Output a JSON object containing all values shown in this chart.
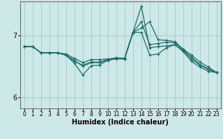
{
  "xlabel": "Humidex (Indice chaleur)",
  "bg_color": "#cce8e8",
  "grid_color": "#aacccc",
  "line_color": "#1a6e6a",
  "xlim": [
    -0.5,
    23.5
  ],
  "ylim": [
    5.82,
    7.55
  ],
  "yticks": [
    6,
    7
  ],
  "xticks": [
    0,
    1,
    2,
    3,
    4,
    5,
    6,
    7,
    8,
    9,
    10,
    11,
    12,
    13,
    14,
    15,
    16,
    17,
    18,
    19,
    20,
    21,
    22,
    23
  ],
  "series": [
    {
      "x": [
        0,
        1,
        2,
        3,
        4,
        5,
        6,
        7,
        8,
        9,
        10,
        11,
        12,
        13,
        14,
        15,
        16,
        17,
        18,
        19,
        20,
        21,
        22,
        23
      ],
      "y": [
        6.82,
        6.82,
        6.72,
        6.72,
        6.72,
        6.7,
        6.63,
        6.56,
        6.61,
        6.61,
        6.62,
        6.63,
        6.62,
        7.05,
        7.05,
        6.68,
        6.7,
        6.8,
        6.85,
        6.75,
        6.62,
        6.52,
        6.45,
        6.4
      ]
    },
    {
      "x": [
        0,
        1,
        2,
        3,
        4,
        5,
        6,
        7,
        8,
        9,
        10,
        11,
        12,
        13,
        14,
        15,
        16,
        17,
        18,
        19,
        20,
        21,
        22,
        23
      ],
      "y": [
        6.82,
        6.82,
        6.72,
        6.72,
        6.72,
        6.68,
        6.6,
        6.5,
        6.56,
        6.56,
        6.6,
        6.62,
        6.62,
        7.05,
        7.22,
        6.85,
        6.87,
        6.89,
        6.88,
        6.77,
        6.65,
        6.53,
        6.46,
        6.4
      ]
    },
    {
      "x": [
        0,
        1,
        2,
        3,
        4,
        5,
        6,
        7,
        8,
        9,
        10,
        11,
        12,
        13,
        14,
        15,
        16,
        17,
        18,
        19,
        20,
        21,
        22,
        23
      ],
      "y": [
        6.82,
        6.82,
        6.72,
        6.72,
        6.72,
        6.68,
        6.58,
        6.52,
        6.57,
        6.57,
        6.61,
        6.64,
        6.63,
        7.05,
        7.12,
        7.22,
        6.93,
        6.92,
        6.9,
        6.78,
        6.68,
        6.57,
        6.49,
        6.4
      ]
    },
    {
      "x": [
        3,
        4,
        5,
        6,
        7,
        8,
        9,
        10,
        11,
        12,
        13,
        14,
        15,
        16,
        17,
        18,
        19,
        20,
        21,
        22,
        23
      ],
      "y": [
        6.72,
        6.72,
        6.68,
        6.55,
        6.36,
        6.51,
        6.52,
        6.6,
        6.63,
        6.63,
        7.05,
        7.47,
        6.8,
        6.82,
        6.83,
        6.85,
        6.74,
        6.58,
        6.49,
        6.42,
        6.4
      ]
    }
  ]
}
